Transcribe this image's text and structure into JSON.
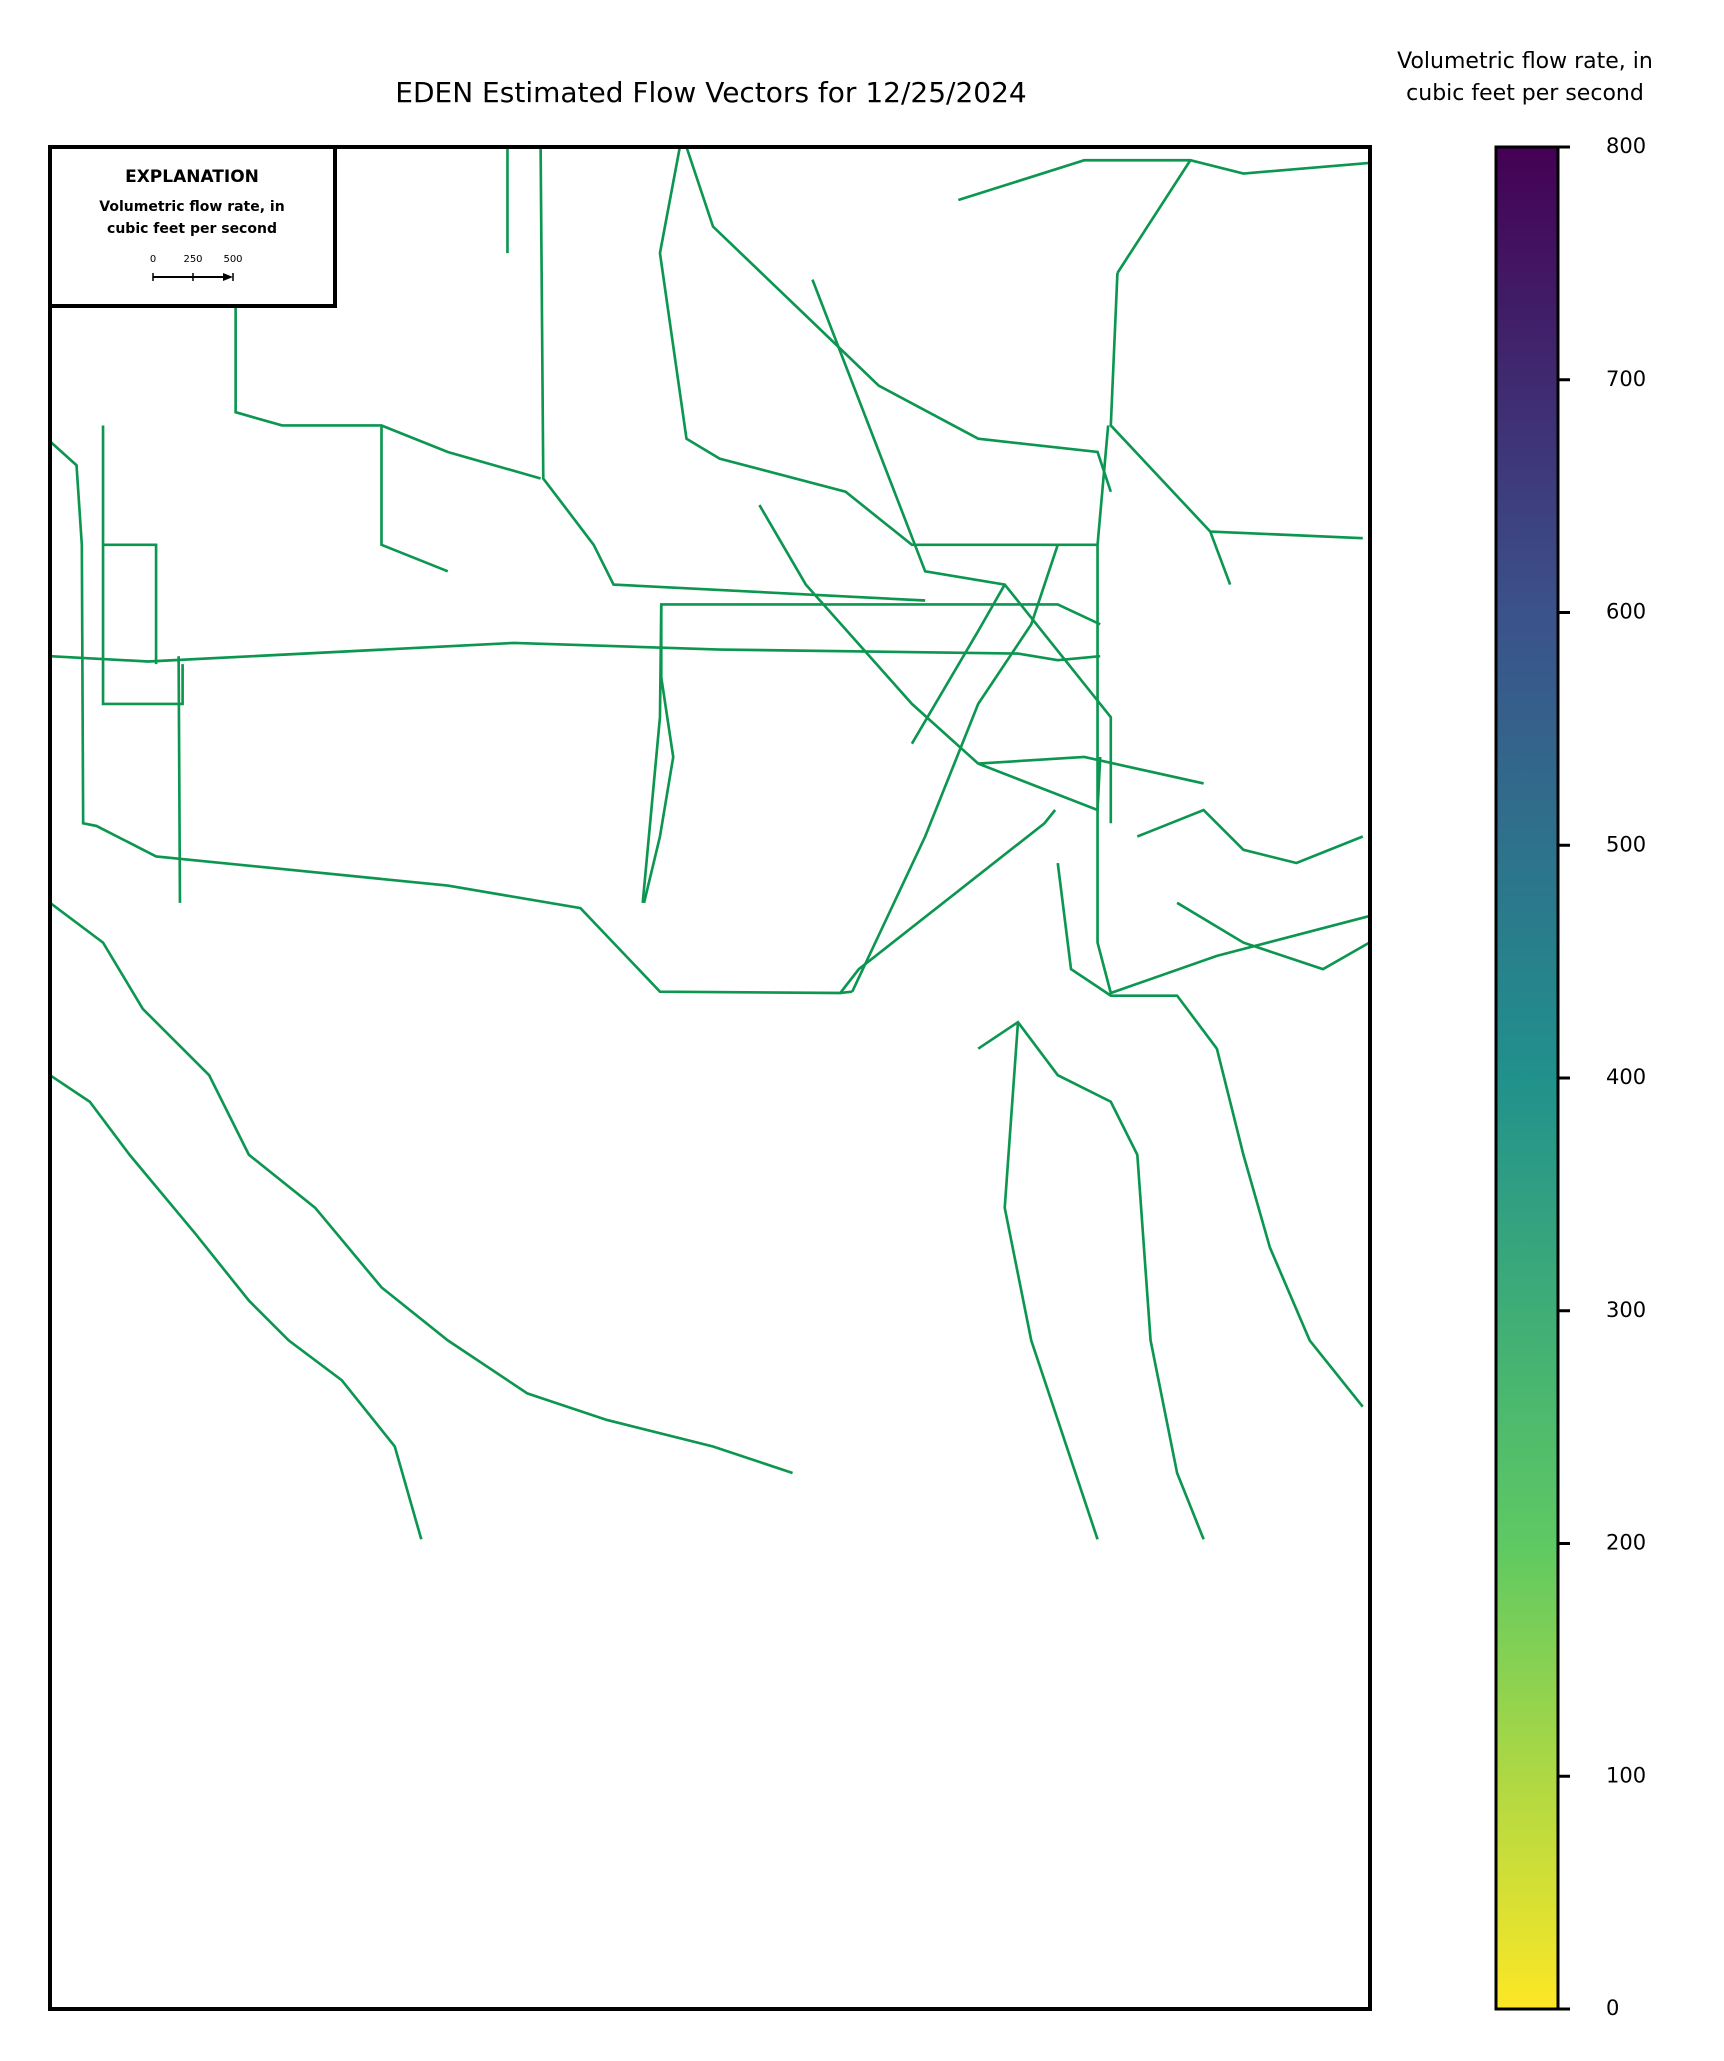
{
  "title": "EDEN Estimated Flow Vectors for 12/25/2024",
  "legend": {
    "title": "EXPLANATION",
    "label_lines": [
      "Volumetric flow rate, in",
      "cubic feet per second"
    ],
    "scale_ticks": [
      0,
      250,
      500
    ]
  },
  "colorbar": {
    "label_lines": [
      "Volumetric flow rate, in",
      "cubic feet per second"
    ],
    "lim": [
      0,
      800
    ],
    "ticks": [
      0,
      100,
      200,
      300,
      400,
      500,
      600,
      700,
      800
    ],
    "colors": [
      "#fde725",
      "#5ec962",
      "#21918c",
      "#3b528b",
      "#440154"
    ]
  }
}
